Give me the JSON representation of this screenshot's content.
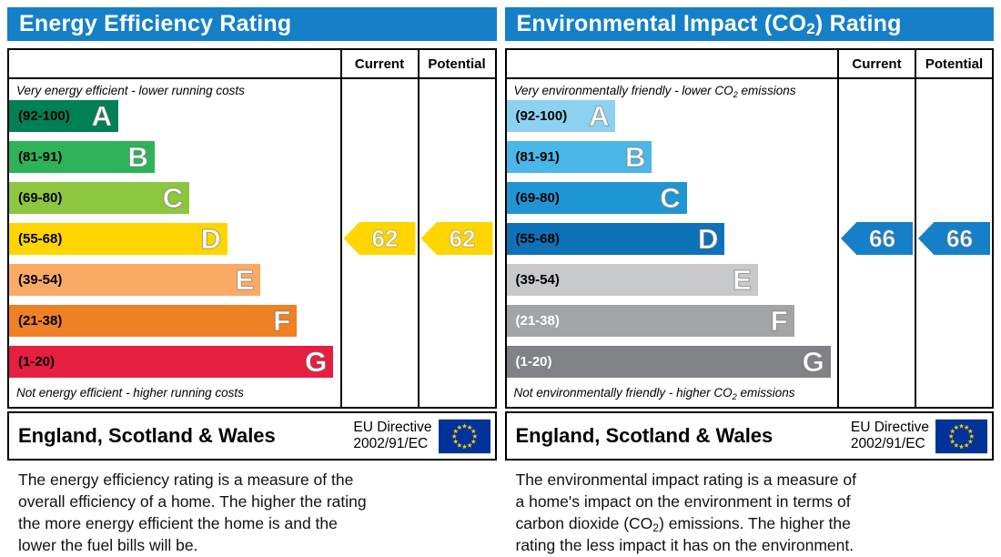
{
  "accent": {
    "header_bg": "#1580c8",
    "border": "#000000",
    "eu_flag_blue": "#003399",
    "eu_star_yellow": "#ffcc00"
  },
  "panels": [
    {
      "title": {
        "pre": "Energy Efficiency Rating",
        "sub": "",
        "post": ""
      },
      "table": {
        "current_label": "Current",
        "potential_label": "Potential"
      },
      "top_caption": {
        "pre": "Very energy efficient - lower running costs",
        "sub": "",
        "post": ""
      },
      "bottom_caption": {
        "pre": "Not energy efficient - higher running costs",
        "sub": "",
        "post": ""
      },
      "bands": [
        {
          "range": "(92-100)",
          "letter": "A",
          "color": "#008054",
          "width": 33,
          "range_color": "#000000"
        },
        {
          "range": "(81-91)",
          "letter": "B",
          "color": "#2eb358",
          "width": 44,
          "range_color": "#000000"
        },
        {
          "range": "(69-80)",
          "letter": "C",
          "color": "#8dc63f",
          "width": 54.5,
          "range_color": "#000000"
        },
        {
          "range": "(55-68)",
          "letter": "D",
          "color": "#ffd500",
          "width": 66,
          "range_color": "#000000"
        },
        {
          "range": "(39-54)",
          "letter": "E",
          "color": "#fbaa65",
          "width": 76,
          "range_color": "#000000"
        },
        {
          "range": "(21-38)",
          "letter": "F",
          "color": "#ef8023",
          "width": 87,
          "range_color": "#000000"
        },
        {
          "range": "(1-20)",
          "letter": "G",
          "color": "#e61e42",
          "width": 98,
          "range_color": "#000000"
        }
      ],
      "current": {
        "value": "62",
        "color": "#ffd500"
      },
      "potential": {
        "value": "62",
        "color": "#ffd500"
      },
      "footer": {
        "region": "England, Scotland & Wales",
        "directive_line1": "EU Directive",
        "directive_line2": "2002/91/EC"
      },
      "description": [
        {
          "pre": "The energy efficiency rating is a measure of the",
          "sub": "",
          "post": ""
        },
        {
          "pre": "overall efficiency of a home. The higher the rating",
          "sub": "",
          "post": ""
        },
        {
          "pre": "the more energy efficient the home is and the",
          "sub": "",
          "post": ""
        },
        {
          "pre": "lower the fuel bills will be.",
          "sub": "",
          "post": ""
        }
      ]
    },
    {
      "title": {
        "pre": "Environmental Impact (CO",
        "sub": "2",
        "post": ") Rating"
      },
      "table": {
        "current_label": "Current",
        "potential_label": "Potential"
      },
      "top_caption": {
        "pre": "Very environmentally friendly - lower CO",
        "sub": "2",
        "post": " emissions"
      },
      "bottom_caption": {
        "pre": "Not environmentally friendly - higher CO",
        "sub": "2",
        "post": " emissions"
      },
      "bands": [
        {
          "range": "(92-100)",
          "letter": "A",
          "color": "#8cd2f0",
          "width": 33,
          "range_color": "#000000"
        },
        {
          "range": "(81-91)",
          "letter": "B",
          "color": "#4bb6e8",
          "width": 44,
          "range_color": "#000000"
        },
        {
          "range": "(69-80)",
          "letter": "C",
          "color": "#2095d3",
          "width": 54.5,
          "range_color": "#000000"
        },
        {
          "range": "(55-68)",
          "letter": "D",
          "color": "#0d72b8",
          "width": 66,
          "range_color": "#000000"
        },
        {
          "range": "(39-54)",
          "letter": "E",
          "color": "#c8c9cb",
          "width": 76,
          "range_color": "#000000"
        },
        {
          "range": "(21-38)",
          "letter": "F",
          "color": "#a3a4a6",
          "width": 87,
          "range_color": "#ffffff"
        },
        {
          "range": "(1-20)",
          "letter": "G",
          "color": "#818285",
          "width": 98,
          "range_color": "#ffffff"
        }
      ],
      "current": {
        "value": "66",
        "color": "#1580c8"
      },
      "potential": {
        "value": "66",
        "color": "#1580c8"
      },
      "footer": {
        "region": "England, Scotland & Wales",
        "directive_line1": "EU Directive",
        "directive_line2": "2002/91/EC"
      },
      "description": [
        {
          "pre": "The environmental impact rating is a measure of",
          "sub": "",
          "post": ""
        },
        {
          "pre": "a home's impact on the environment in terms of",
          "sub": "",
          "post": ""
        },
        {
          "pre": "carbon dioxide (CO",
          "sub": "2",
          "post": ") emissions. The higher the"
        },
        {
          "pre": "rating the less impact it has on the environment.",
          "sub": "",
          "post": ""
        }
      ]
    }
  ],
  "chart_data": [
    {
      "type": "bar",
      "title": "Energy Efficiency Rating",
      "categories": [
        "A (92-100)",
        "B (81-91)",
        "C (69-80)",
        "D (55-68)",
        "E (39-54)",
        "F (21-38)",
        "G (1-20)"
      ],
      "values": [
        33,
        44,
        55,
        66,
        76,
        87,
        98
      ],
      "current": 62,
      "potential": 62,
      "current_band": "D",
      "potential_band": "D",
      "xlim": [
        1,
        100
      ],
      "legend": [
        "Current",
        "Potential"
      ],
      "annotations": [
        "Very energy efficient - lower running costs",
        "Not energy efficient - higher running costs",
        "England, Scotland & Wales",
        "EU Directive 2002/91/EC"
      ]
    },
    {
      "type": "bar",
      "title": "Environmental Impact (CO2) Rating",
      "categories": [
        "A (92-100)",
        "B (81-91)",
        "C (69-80)",
        "D (55-68)",
        "E (39-54)",
        "F (21-38)",
        "G (1-20)"
      ],
      "values": [
        33,
        44,
        55,
        66,
        76,
        87,
        98
      ],
      "current": 66,
      "potential": 66,
      "current_band": "D",
      "potential_band": "D",
      "xlim": [
        1,
        100
      ],
      "legend": [
        "Current",
        "Potential"
      ],
      "annotations": [
        "Very environmentally friendly - lower CO2 emissions",
        "Not environmentally friendly - higher CO2 emissions",
        "England, Scotland & Wales",
        "EU Directive 2002/91/EC"
      ]
    }
  ]
}
